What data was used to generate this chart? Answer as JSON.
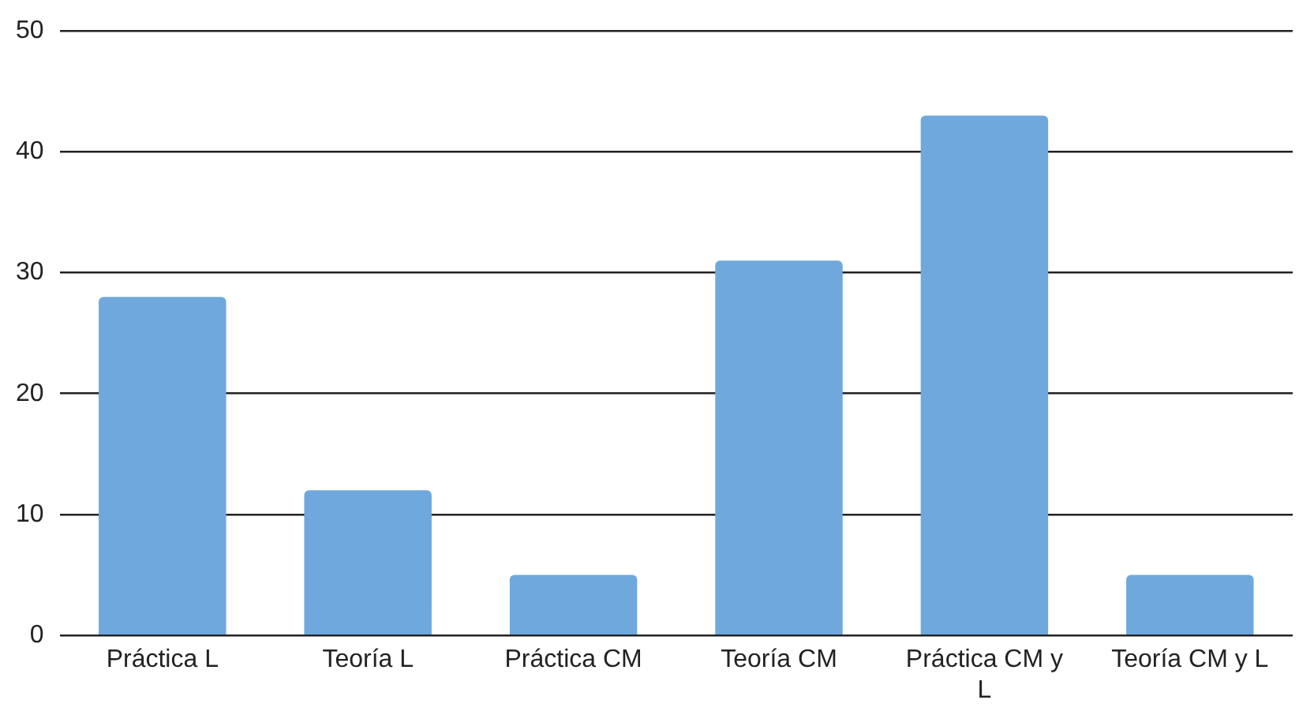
{
  "chart_data": {
    "type": "bar",
    "categories": [
      "Práctica L",
      "Teoría L",
      "Práctica CM",
      "Teoría CM",
      "Práctica CM y L",
      "Teoría CM y L"
    ],
    "values": [
      28,
      12,
      5,
      31,
      43,
      5
    ],
    "color": "#6fa8dc",
    "ylim": [
      0,
      50
    ],
    "yticks": [
      0,
      10,
      20,
      30,
      40,
      50
    ],
    "grid": "y",
    "legend": false
  }
}
